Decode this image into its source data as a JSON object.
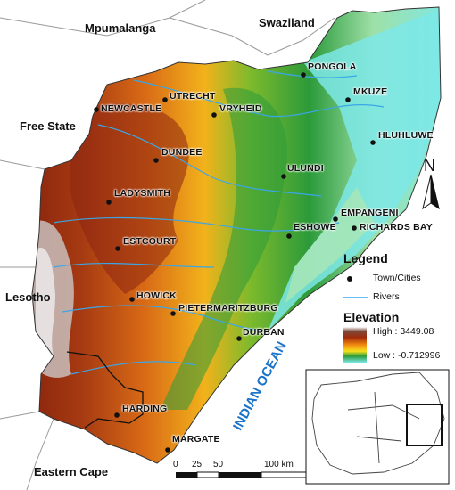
{
  "regions": {
    "mpumalanga": "Mpumalanga",
    "swaziland": "Swaziland",
    "free_state": "Free State",
    "lesotho": "Lesotho",
    "eastern_cape": "Eastern Cape"
  },
  "ocean_label": "INDIAN OCEAN",
  "towns": [
    {
      "id": "pongola",
      "name": "PONGOLA"
    },
    {
      "id": "utrecht",
      "name": "UTRECHT"
    },
    {
      "id": "mkuze",
      "name": "MKUZE"
    },
    {
      "id": "newcastle",
      "name": "NEWCASTLE"
    },
    {
      "id": "vryheid",
      "name": "VRYHEID"
    },
    {
      "id": "hluhluwe",
      "name": "HLUHLUWE"
    },
    {
      "id": "dundee",
      "name": "DUNDEE"
    },
    {
      "id": "ulundi",
      "name": "ULUNDI"
    },
    {
      "id": "ladysmith",
      "name": "LADYSMITH"
    },
    {
      "id": "empangeni",
      "name": "EMPANGENI"
    },
    {
      "id": "richards_bay",
      "name": "RICHARDS BAY"
    },
    {
      "id": "eshowe",
      "name": "ESHOWE"
    },
    {
      "id": "estcourt",
      "name": "ESTCOURT"
    },
    {
      "id": "howick",
      "name": "HOWICK"
    },
    {
      "id": "pietermaritzburg",
      "name": "PIETERMARITZBURG"
    },
    {
      "id": "durban",
      "name": "DURBAN"
    },
    {
      "id": "harding",
      "name": "HARDING"
    },
    {
      "id": "margate",
      "name": "MARGATE"
    }
  ],
  "legend": {
    "title": "Legend",
    "town_label": "Town/Cities",
    "rivers_label": "Rivers",
    "elevation_title": "Elevation",
    "high_label": "High : 3449.08",
    "low_label": "Low : -0.712996"
  },
  "north_label": "N",
  "scale": {
    "ticks": [
      "0",
      "25",
      "50",
      "100 km"
    ]
  },
  "colors": {
    "river": "#3aa6e8",
    "ocean_label": "#1a73c9",
    "elevation_high": "#7a1a0a",
    "elevation_low": "#7de8e8"
  }
}
